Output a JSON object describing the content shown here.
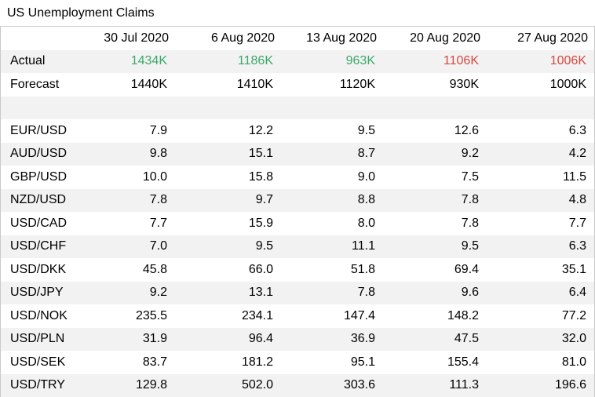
{
  "title": "US Unemployment Claims",
  "colors": {
    "positive": "#3ca86a",
    "negative": "#d9473f",
    "stripe": "#f2f2f2"
  },
  "dates": [
    "30 Jul 2020",
    "6 Aug 2020",
    "13 Aug 2020",
    "20 Aug 2020",
    "27 Aug 2020"
  ],
  "actual": {
    "label": "Actual",
    "values": [
      "1434K",
      "1186K",
      "963K",
      "1106K",
      "1006K"
    ],
    "status": [
      "green",
      "green",
      "green",
      "red",
      "red"
    ]
  },
  "forecast": {
    "label": "Forecast",
    "values": [
      "1440K",
      "1410K",
      "1120K",
      "930K",
      "1000K"
    ]
  },
  "pairs": [
    {
      "name": "EUR/USD",
      "values": [
        "7.9",
        "12.2",
        "9.5",
        "12.6",
        "6.3"
      ]
    },
    {
      "name": "AUD/USD",
      "values": [
        "9.8",
        "15.1",
        "8.7",
        "9.2",
        "4.2"
      ]
    },
    {
      "name": "GBP/USD",
      "values": [
        "10.0",
        "15.8",
        "9.0",
        "7.5",
        "11.5"
      ]
    },
    {
      "name": "NZD/USD",
      "values": [
        "7.8",
        "9.7",
        "8.8",
        "7.8",
        "4.8"
      ]
    },
    {
      "name": "USD/CAD",
      "values": [
        "7.7",
        "15.9",
        "8.0",
        "7.8",
        "7.7"
      ]
    },
    {
      "name": "USD/CHF",
      "values": [
        "7.0",
        "9.5",
        "11.1",
        "9.5",
        "6.3"
      ]
    },
    {
      "name": "USD/DKK",
      "values": [
        "45.8",
        "66.0",
        "51.8",
        "69.4",
        "35.1"
      ]
    },
    {
      "name": "USD/JPY",
      "values": [
        "9.2",
        "13.1",
        "7.8",
        "9.6",
        "6.4"
      ]
    },
    {
      "name": "USD/NOK",
      "values": [
        "235.5",
        "234.1",
        "147.4",
        "148.2",
        "77.2"
      ]
    },
    {
      "name": "USD/PLN",
      "values": [
        "31.9",
        "96.4",
        "36.9",
        "47.5",
        "32.0"
      ]
    },
    {
      "name": "USD/SEK",
      "values": [
        "83.7",
        "181.2",
        "95.1",
        "155.4",
        "81.0"
      ]
    },
    {
      "name": "USD/TRY",
      "values": [
        "129.8",
        "502.0",
        "303.6",
        "111.3",
        "196.6"
      ]
    }
  ]
}
